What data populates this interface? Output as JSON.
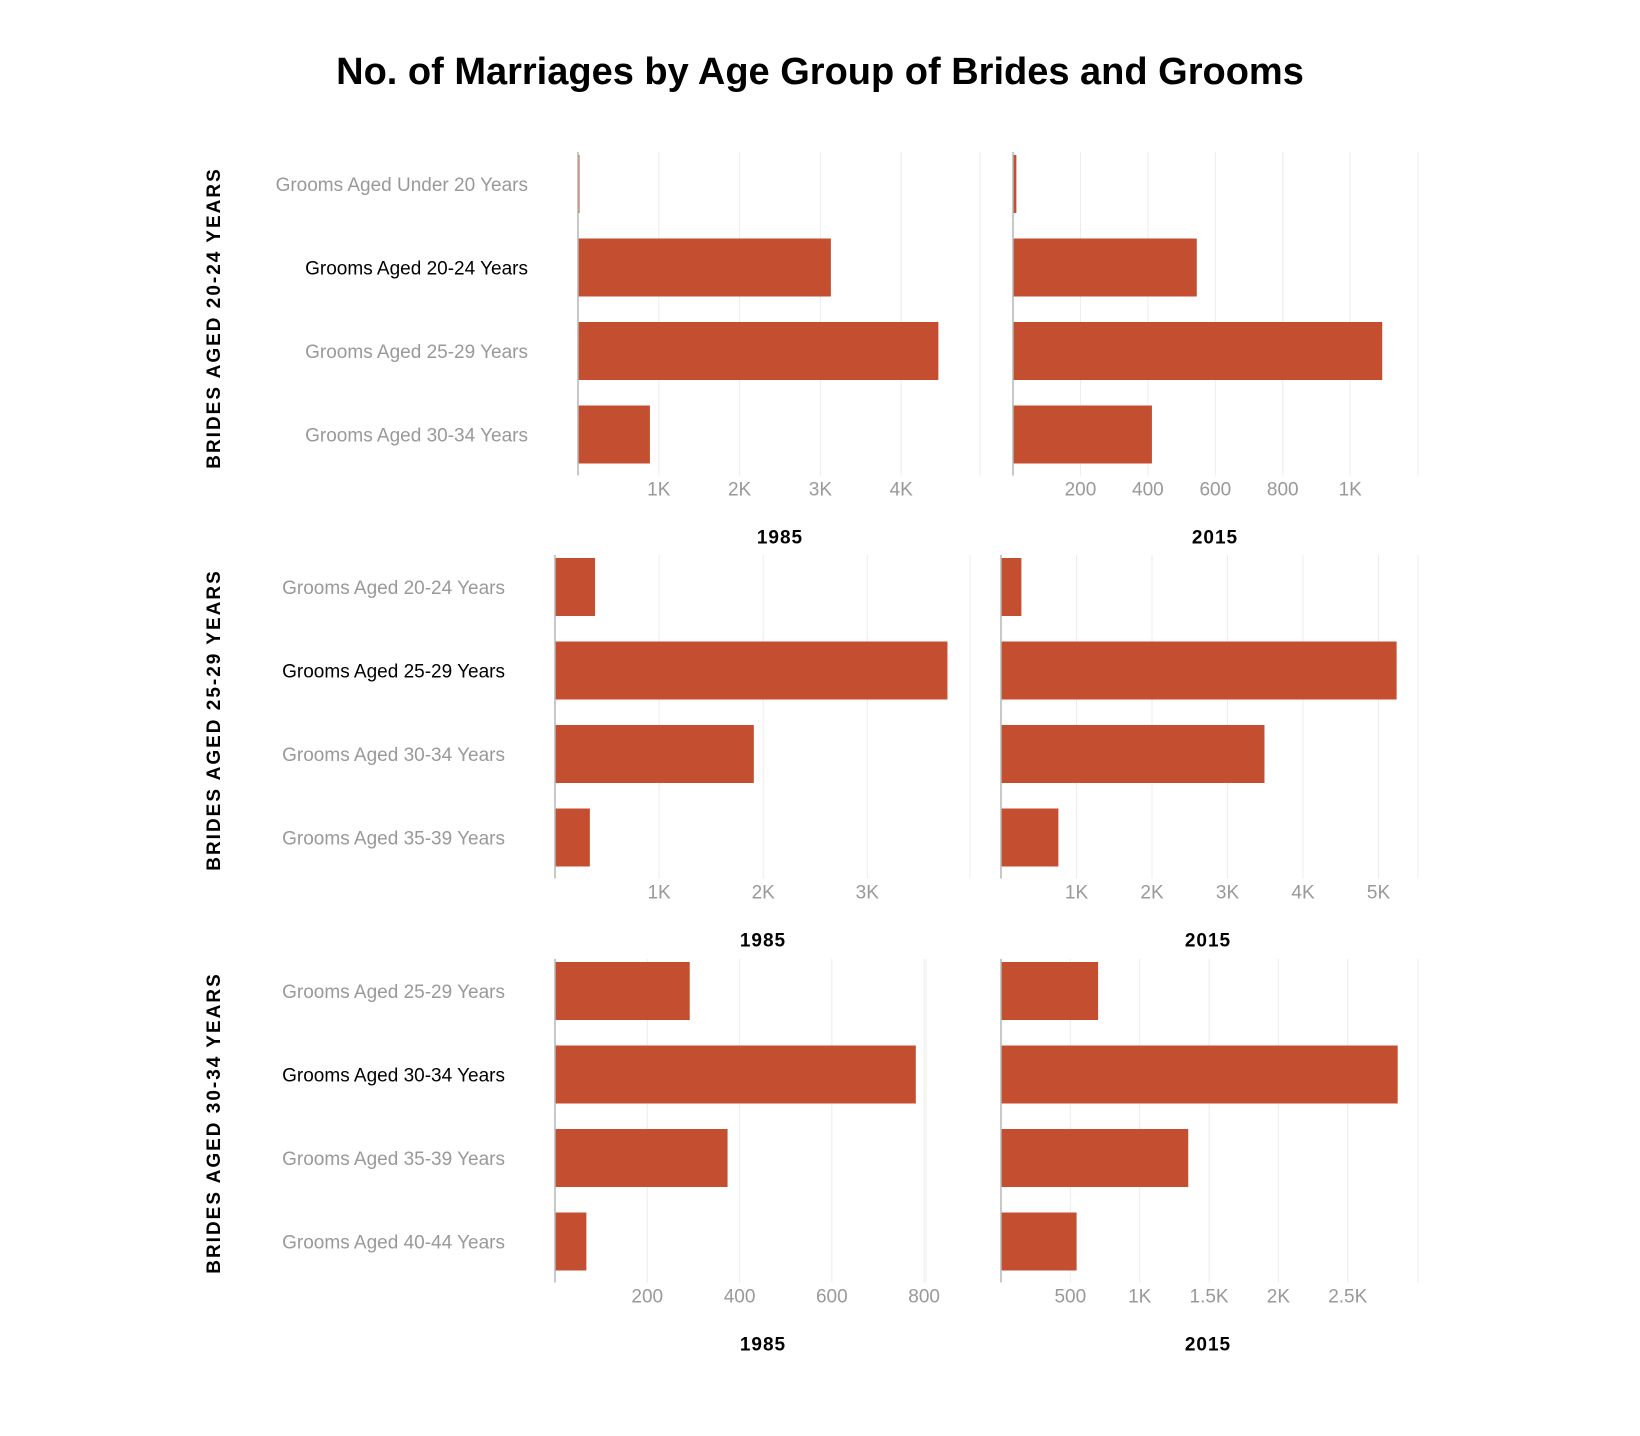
{
  "title": "No. of Marriages by Age Group of Brides and Grooms",
  "colors": {
    "bar": "#c44f30",
    "highlight_label": "#000000",
    "label": "#999999"
  },
  "chart_data": [
    {
      "type": "bar",
      "orientation": "horizontal",
      "group": "BRIDES AGED 20-24 YEARS",
      "xlabel": "1985",
      "categories": [
        "Grooms Aged Under 20 Years",
        "Grooms Aged 20-24 Years",
        "Grooms Aged 25-29 Years",
        "Grooms Aged 30-34 Years"
      ],
      "highlight": "Grooms Aged 20-24 Years",
      "values": [
        12,
        3130,
        4460,
        890
      ],
      "xlim": [
        0,
        4800
      ],
      "ticks": [
        1000,
        2000,
        3000,
        4000
      ],
      "tick_labels": [
        "1K",
        "2K",
        "3K",
        "4K"
      ]
    },
    {
      "type": "bar",
      "orientation": "horizontal",
      "group": "BRIDES AGED 20-24 YEARS",
      "xlabel": "2015",
      "categories": [
        "Grooms Aged Under 20 Years",
        "Grooms Aged 20-24 Years",
        "Grooms Aged 25-29 Years",
        "Grooms Aged 30-34 Years"
      ],
      "highlight": "Grooms Aged 20-24 Years",
      "values": [
        10,
        545,
        1095,
        412
      ],
      "xlim": [
        0,
        1200
      ],
      "ticks": [
        200,
        400,
        600,
        800,
        1000
      ],
      "tick_labels": [
        "200",
        "400",
        "600",
        "800",
        "1K"
      ]
    },
    {
      "type": "bar",
      "orientation": "horizontal",
      "group": "BRIDES AGED 25-29 YEARS",
      "xlabel": "1985",
      "categories": [
        "Grooms Aged 20-24 Years",
        "Grooms Aged 25-29 Years",
        "Grooms Aged 30-34 Years",
        "Grooms Aged 35-39 Years"
      ],
      "highlight": "Grooms Aged 25-29 Years",
      "values": [
        385,
        3770,
        1910,
        335
      ],
      "xlim": [
        0,
        4000
      ],
      "ticks": [
        1000,
        2000,
        3000
      ],
      "tick_labels": [
        "1K",
        "2K",
        "3K"
      ]
    },
    {
      "type": "bar",
      "orientation": "horizontal",
      "group": "BRIDES AGED 25-29 YEARS",
      "xlabel": "2015",
      "categories": [
        "Grooms Aged 20-24 Years",
        "Grooms Aged 25-29 Years",
        "Grooms Aged 30-34 Years",
        "Grooms Aged 35-39 Years"
      ],
      "highlight": "Grooms Aged 25-29 Years",
      "values": [
        270,
        5240,
        3490,
        760
      ],
      "xlim": [
        0,
        5500
      ],
      "ticks": [
        1000,
        2000,
        3000,
        4000,
        5000
      ],
      "tick_labels": [
        "1K",
        "2K",
        "3K",
        "4K",
        "5K"
      ]
    },
    {
      "type": "bar",
      "orientation": "horizontal",
      "group": "BRIDES AGED 30-34 YEARS",
      "xlabel": "1985",
      "categories": [
        "Grooms Aged 25-29 Years",
        "Grooms Aged 30-34 Years",
        "Grooms Aged 35-39 Years",
        "Grooms Aged 40-44 Years"
      ],
      "highlight": "Grooms Aged 30-34 Years",
      "values": [
        292,
        782,
        374,
        68
      ],
      "xlim": [
        0,
        900
      ],
      "ticks": [
        200,
        400,
        600,
        800
      ],
      "tick_labels": [
        "200",
        "400",
        "600",
        "800"
      ]
    },
    {
      "type": "bar",
      "orientation": "horizontal",
      "group": "BRIDES AGED 30-34 YEARS",
      "xlabel": "2015",
      "categories": [
        "Grooms Aged 25-29 Years",
        "Grooms Aged 30-34 Years",
        "Grooms Aged 35-39 Years",
        "Grooms Aged 40-44 Years"
      ],
      "highlight": "Grooms Aged 30-34 Years",
      "values": [
        700,
        2860,
        1350,
        545
      ],
      "xlim": [
        0,
        3000
      ],
      "ticks": [
        500,
        1000,
        1500,
        2000,
        2500
      ],
      "tick_labels": [
        "500",
        "1K",
        "1.5K",
        "2K",
        "2.5K"
      ]
    }
  ]
}
